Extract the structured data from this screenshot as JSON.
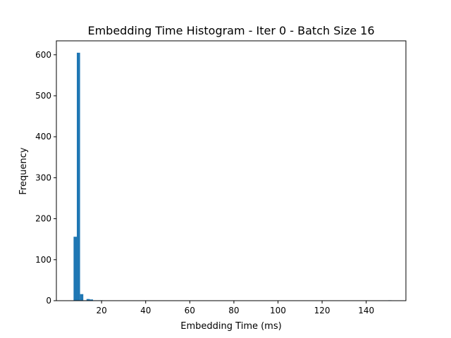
{
  "chart_data": {
    "type": "bar",
    "title": "Embedding Time Histogram - Iter 0 - Batch Size 16",
    "xlabel": "Embedding Time (ms)",
    "ylabel": "Frequency",
    "xlim": [
      -0.5,
      158
    ],
    "ylim": [
      0,
      634
    ],
    "bin_width": 1.47,
    "bins_start": [
      7.3,
      8.77,
      10.24,
      11.71,
      13.18,
      14.65,
      16.12,
      17.59,
      19.06
    ],
    "counts": [
      156,
      605,
      16,
      1,
      4,
      3,
      1,
      1,
      1
    ],
    "outlier_bins_start": [
      150.0
    ],
    "outlier_counts": [
      1
    ],
    "x_ticks": [
      20,
      40,
      60,
      80,
      100,
      120,
      140
    ],
    "y_ticks": [
      0,
      100,
      200,
      300,
      400,
      500,
      600
    ],
    "grid": false,
    "bar_color": "#1f77b4"
  }
}
